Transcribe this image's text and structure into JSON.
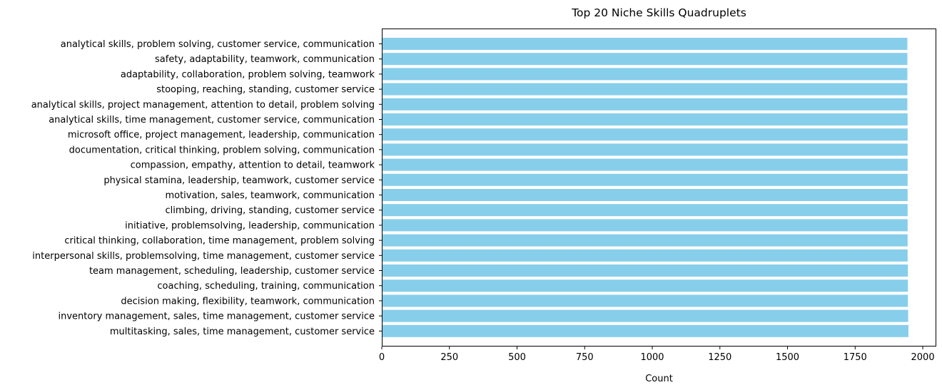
{
  "chart_data": {
    "type": "bar",
    "orientation": "horizontal",
    "title": "Top 20 Niche Skills Quadruplets",
    "xlabel": "Count",
    "ylabel": "",
    "xlim": [
      0,
      2050
    ],
    "xticks": [
      0,
      250,
      500,
      750,
      1000,
      1250,
      1500,
      1750,
      2000
    ],
    "bar_color": "#87ceeb",
    "grid": false,
    "categories": [
      "analytical skills, problem solving, customer service, communication",
      "safety, adaptability, teamwork, communication",
      "adaptability, collaboration, problem solving, teamwork",
      "stooping, reaching, standing, customer service",
      "analytical skills, project management, attention to detail, problem solving",
      "analytical skills, time management, customer service, communication",
      "microsoft office, project management, leadership, communication",
      "documentation, critical thinking, problem solving, communication",
      "compassion, empathy, attention to detail, teamwork",
      "physical stamina, leadership, teamwork, customer service",
      "motivation, sales, teamwork, communication",
      "climbing, driving, standing, customer service",
      "initiative, problemsolving, leadership, communication",
      "critical thinking, collaboration, time management, problem solving",
      "interpersonal skills, problemsolving, time management, customer service",
      "team management, scheduling, leadership, customer service",
      "coaching, scheduling, training, communication",
      "decision making, flexibility, teamwork, communication",
      "inventory management, sales, time management, customer service",
      "multitasking, sales, time management, customer service"
    ],
    "values": [
      1943,
      1943,
      1943,
      1943,
      1943,
      1944,
      1944,
      1944,
      1944,
      1944,
      1944,
      1944,
      1944,
      1944,
      1944,
      1945,
      1945,
      1945,
      1946,
      1947
    ]
  }
}
